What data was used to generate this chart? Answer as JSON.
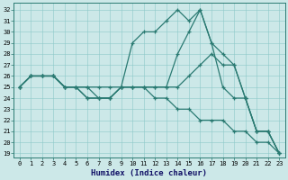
{
  "bg_color": "#cce8e8",
  "line_color": "#2a7a72",
  "xlabel": "Humidex (Indice chaleur)",
  "xlim": [
    -0.5,
    23.5
  ],
  "ylim": [
    18.6,
    32.6
  ],
  "yticks": [
    19,
    20,
    21,
    22,
    23,
    24,
    25,
    26,
    27,
    28,
    29,
    30,
    31,
    32
  ],
  "xticks": [
    0,
    1,
    2,
    3,
    4,
    5,
    6,
    7,
    8,
    9,
    10,
    11,
    12,
    13,
    14,
    15,
    16,
    17,
    18,
    19,
    20,
    21,
    22,
    23
  ],
  "series": [
    [
      25,
      26,
      26,
      26,
      25,
      25,
      24,
      24,
      24,
      25,
      29,
      30,
      30,
      31,
      32,
      31,
      32,
      29,
      25,
      24,
      24,
      21,
      21,
      19
    ],
    [
      25,
      26,
      26,
      26,
      25,
      25,
      24,
      24,
      24,
      25,
      25,
      25,
      25,
      25,
      28,
      30,
      32,
      29,
      28,
      27,
      24,
      21,
      21,
      19
    ],
    [
      25,
      26,
      26,
      26,
      25,
      25,
      25,
      24,
      24,
      25,
      25,
      25,
      25,
      25,
      25,
      26,
      27,
      28,
      27,
      27,
      24,
      21,
      21,
      19
    ],
    [
      25,
      26,
      26,
      26,
      25,
      25,
      25,
      25,
      25,
      25,
      25,
      25,
      24,
      24,
      23,
      23,
      22,
      22,
      22,
      21,
      21,
      20,
      20,
      19
    ]
  ]
}
